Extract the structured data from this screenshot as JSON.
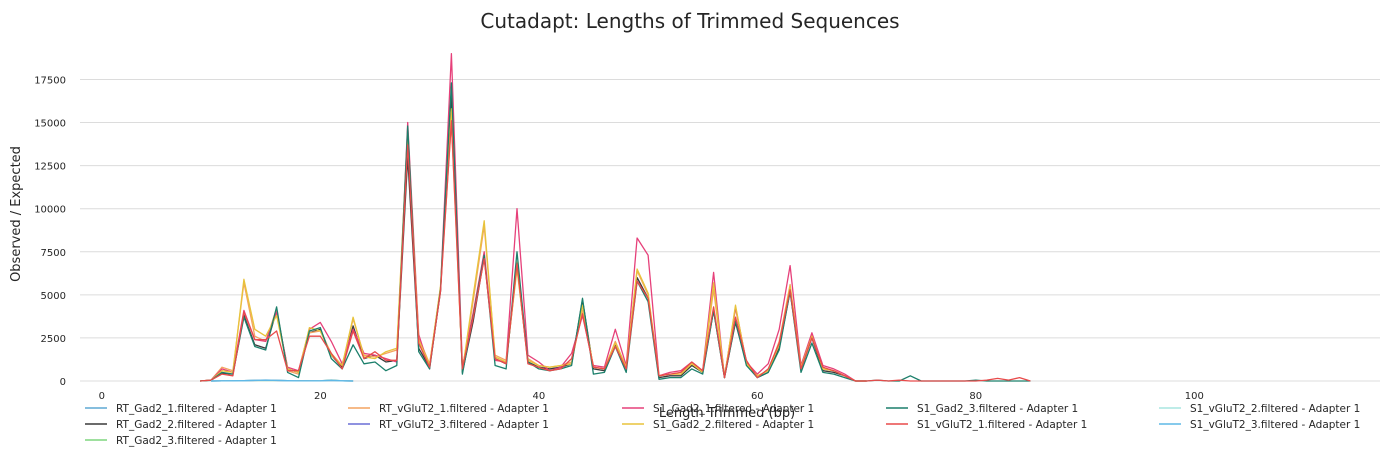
{
  "chart_data": {
    "type": "line",
    "title": "Cutadapt: Lengths of Trimmed Sequences",
    "xlabel": "Length Trimmed (bp)",
    "ylabel": "Observed / Expected",
    "xlim": [
      -2,
      117
    ],
    "ylim": [
      0,
      19500
    ],
    "xticks": [
      0,
      20,
      40,
      60,
      80,
      100
    ],
    "yticks": [
      0,
      2500,
      5000,
      7500,
      10000,
      12500,
      15000,
      17500
    ],
    "grid": "horizontal",
    "legend_position": "bottom",
    "series": [
      {
        "name": "RT_Gad2_1.filtered - Adapter 1",
        "color": "#5fa8d3",
        "x": [
          10,
          11,
          12,
          13,
          14,
          15,
          16,
          17,
          18,
          19,
          20,
          21,
          22,
          23
        ],
        "y": [
          0,
          5,
          10,
          20,
          40,
          60,
          40,
          20,
          10,
          5,
          10,
          60,
          10,
          0
        ]
      },
      {
        "name": "RT_Gad2_2.filtered - Adapter 1",
        "color": "#3a3a3a",
        "x": [
          9,
          10,
          11,
          12,
          13,
          14,
          15,
          16,
          17,
          18,
          19,
          20,
          21,
          22,
          23,
          24,
          25,
          26,
          27,
          28,
          29,
          30,
          31,
          32,
          33,
          34,
          35,
          36,
          37,
          38,
          39,
          40,
          41,
          42,
          43,
          44,
          45,
          46,
          47,
          48,
          49,
          50,
          51,
          52,
          53,
          54,
          55,
          56,
          57,
          58,
          59,
          60,
          61,
          62,
          63,
          64,
          65,
          66,
          67,
          68,
          69,
          70
        ],
        "y": [
          0,
          50,
          450,
          400,
          3800,
          2100,
          1900,
          4100,
          700,
          500,
          2800,
          3000,
          1500,
          800,
          3200,
          1300,
          1500,
          1100,
          1200,
          13000,
          1900,
          800,
          5200,
          16500,
          500,
          3500,
          7200,
          1300,
          1000,
          6700,
          1100,
          800,
          700,
          800,
          1000,
          4700,
          700,
          600,
          2100,
          700,
          6000,
          4800,
          200,
          300,
          300,
          900,
          500,
          4100,
          200,
          3400,
          1000,
          200,
          500,
          1900,
          5200,
          700,
          2500,
          600,
          500,
          300,
          0,
          0
        ]
      },
      {
        "name": "RT_Gad2_3.filtered - Adapter 1",
        "color": "#7fd67f",
        "x": [
          10,
          11,
          12,
          13,
          14,
          15,
          16,
          17,
          18,
          19,
          20,
          21,
          22,
          23
        ],
        "y": [
          0,
          5,
          10,
          20,
          30,
          40,
          30,
          20,
          10,
          5,
          10,
          40,
          10,
          0
        ]
      },
      {
        "name": "RT_vGluT2_1.filtered - Adapter 1",
        "color": "#f4a460",
        "x": [
          9,
          10,
          11,
          12,
          13,
          14,
          15,
          16,
          17,
          18,
          19,
          20,
          21,
          22,
          23,
          24,
          25,
          26,
          27,
          28,
          29,
          30,
          31,
          32,
          33,
          34,
          35,
          36,
          37,
          38,
          39,
          40,
          41,
          42,
          43,
          44,
          45,
          46,
          47,
          48,
          49,
          50,
          51,
          52,
          53,
          54,
          55,
          56,
          57,
          58,
          59,
          60,
          61,
          62,
          63,
          64,
          65,
          66,
          67,
          68,
          69,
          70
        ],
        "y": [
          0,
          50,
          800,
          600,
          5700,
          2600,
          2300,
          4200,
          600,
          400,
          2800,
          2900,
          1600,
          900,
          3600,
          1500,
          1400,
          1600,
          1800,
          14000,
          2500,
          1000,
          5400,
          15000,
          600,
          4700,
          9000,
          1500,
          1200,
          6900,
          1300,
          900,
          800,
          900,
          1100,
          4100,
          800,
          700,
          2300,
          800,
          6400,
          5000,
          300,
          400,
          400,
          1000,
          600,
          5300,
          300,
          4200,
          1100,
          300,
          600,
          2300,
          5600,
          800,
          2700,
          700,
          600,
          300,
          0,
          0
        ]
      },
      {
        "name": "RT_vGluT2_3.filtered - Adapter 1",
        "color": "#6a6fd6",
        "x": [
          10,
          11,
          12,
          13,
          14,
          15,
          16,
          17,
          18,
          19,
          20,
          21,
          22,
          23
        ],
        "y": [
          0,
          5,
          10,
          15,
          30,
          50,
          30,
          15,
          5,
          5,
          10,
          30,
          10,
          0
        ]
      },
      {
        "name": "S1_Gad2_1.filtered - Adapter 1",
        "color": "#e6407a",
        "x": [
          9,
          10,
          11,
          12,
          13,
          14,
          15,
          16,
          17,
          18,
          19,
          20,
          21,
          22,
          23,
          24,
          25,
          26,
          27,
          28,
          29,
          30,
          31,
          32,
          33,
          34,
          35,
          36,
          37,
          38,
          39,
          40,
          41,
          42,
          43,
          44,
          45,
          46,
          47,
          48,
          49,
          50,
          51,
          52,
          53,
          54,
          55,
          56,
          57,
          58,
          59,
          60,
          61,
          62,
          63,
          64,
          65,
          66,
          67,
          68,
          69,
          70
        ],
        "y": [
          0,
          60,
          700,
          500,
          4100,
          2400,
          2300,
          4000,
          800,
          600,
          3000,
          3400,
          2300,
          1000,
          3000,
          1600,
          1500,
          1300,
          1100,
          15000,
          2700,
          700,
          5300,
          19000,
          800,
          4000,
          7500,
          1200,
          1100,
          10000,
          1500,
          1100,
          600,
          800,
          1600,
          3800,
          900,
          800,
          3000,
          900,
          8300,
          7300,
          300,
          500,
          600,
          1100,
          600,
          6300,
          200,
          4300,
          1100,
          400,
          1000,
          3000,
          6700,
          900,
          2800,
          900,
          700,
          400,
          0,
          0
        ]
      },
      {
        "name": "S1_Gad2_2.filtered - Adapter 1",
        "color": "#e8c33b",
        "x": [
          9,
          10,
          11,
          12,
          13,
          14,
          15,
          16,
          17,
          18,
          19,
          20,
          21,
          22,
          23,
          24,
          25,
          26,
          27,
          28,
          29,
          30,
          31,
          32,
          33,
          34,
          35,
          36,
          37,
          38,
          39,
          40,
          41,
          42,
          43,
          44,
          45,
          46,
          47,
          48,
          49,
          50,
          51,
          52,
          53,
          54,
          55,
          56,
          57,
          58,
          59,
          60,
          61,
          62,
          63,
          64,
          65,
          66,
          67,
          68,
          69,
          70
        ],
        "y": [
          0,
          50,
          600,
          500,
          5900,
          3000,
          2600,
          3800,
          700,
          500,
          3100,
          2900,
          1500,
          900,
          3700,
          1400,
          1300,
          1700,
          1900,
          14500,
          2400,
          900,
          5500,
          15800,
          600,
          5000,
          9300,
          1400,
          1100,
          6500,
          1200,
          900,
          800,
          900,
          1000,
          4400,
          800,
          700,
          2200,
          800,
          6500,
          5100,
          300,
          400,
          400,
          1000,
          500,
          5700,
          200,
          4400,
          1000,
          300,
          600,
          2100,
          5500,
          800,
          2600,
          700,
          600,
          300,
          0,
          0
        ]
      },
      {
        "name": "S1_Gad2_3.filtered - Adapter 1",
        "color": "#1b7f6b",
        "x": [
          9,
          10,
          11,
          12,
          13,
          14,
          15,
          16,
          17,
          18,
          19,
          20,
          21,
          22,
          23,
          24,
          25,
          26,
          27,
          28,
          29,
          30,
          31,
          32,
          33,
          34,
          35,
          36,
          37,
          38,
          39,
          40,
          41,
          42,
          43,
          44,
          45,
          46,
          47,
          48,
          49,
          50,
          51,
          52,
          53,
          54,
          55,
          56,
          57,
          58,
          59,
          60,
          61,
          62,
          63,
          64,
          65,
          66,
          67,
          68,
          69,
          70,
          71,
          72,
          73,
          74,
          75,
          76,
          77,
          78,
          79,
          80,
          81,
          82,
          83,
          84,
          85
        ],
        "y": [
          0,
          40,
          500,
          400,
          3700,
          2000,
          1800,
          4300,
          500,
          200,
          2900,
          3100,
          1300,
          700,
          2100,
          1000,
          1100,
          600,
          900,
          14800,
          1700,
          700,
          5300,
          17300,
          400,
          3800,
          7300,
          900,
          700,
          7500,
          1100,
          700,
          600,
          700,
          900,
          4800,
          400,
          500,
          2000,
          500,
          5800,
          4600,
          100,
          200,
          200,
          700,
          400,
          4100,
          200,
          3500,
          900,
          200,
          500,
          1800,
          5200,
          500,
          2200,
          500,
          400,
          200,
          0,
          0,
          50,
          0,
          0,
          300,
          0,
          0,
          0,
          0,
          0,
          50,
          0,
          0,
          0,
          0,
          0
        ]
      },
      {
        "name": "S1_vGluT2_1.filtered - Adapter 1",
        "color": "#e84a4a",
        "x": [
          9,
          10,
          11,
          12,
          13,
          14,
          15,
          16,
          17,
          18,
          19,
          20,
          21,
          22,
          23,
          24,
          25,
          26,
          27,
          28,
          29,
          30,
          31,
          32,
          33,
          34,
          35,
          36,
          37,
          38,
          39,
          40,
          41,
          42,
          43,
          44,
          45,
          46,
          47,
          48,
          49,
          50,
          51,
          52,
          53,
          54,
          55,
          56,
          57,
          58,
          59,
          60,
          61,
          62,
          63,
          64,
          65,
          66,
          67,
          68,
          69,
          70,
          71,
          72,
          73,
          74,
          75,
          76,
          77,
          78,
          79,
          80,
          81,
          82,
          83,
          84,
          85
        ],
        "y": [
          0,
          50,
          400,
          300,
          4000,
          2400,
          2400,
          2900,
          600,
          600,
          2600,
          2600,
          1600,
          700,
          2900,
          1300,
          1700,
          1200,
          1200,
          13700,
          2200,
          800,
          5200,
          15100,
          700,
          3700,
          7100,
          1300,
          1000,
          6800,
          1000,
          800,
          600,
          700,
          1300,
          3900,
          800,
          700,
          2000,
          700,
          5800,
          4800,
          300,
          400,
          500,
          1100,
          600,
          4300,
          200,
          3700,
          1200,
          200,
          700,
          2200,
          5300,
          700,
          2500,
          800,
          600,
          300,
          0,
          0,
          50,
          0,
          50,
          0,
          0,
          0,
          0,
          0,
          0,
          0,
          50,
          150,
          50,
          200,
          0
        ]
      },
      {
        "name": "S1_vGluT2_2.filtered - Adapter 1",
        "color": "#a8e6e0",
        "x": [
          10,
          11,
          12,
          13,
          14,
          15,
          16,
          17,
          18,
          19,
          20,
          21,
          22,
          23
        ],
        "y": [
          0,
          5,
          10,
          20,
          30,
          40,
          30,
          15,
          5,
          5,
          10,
          30,
          10,
          0
        ]
      },
      {
        "name": "S1_vGluT2_3.filtered - Adapter 1",
        "color": "#5fb8e6",
        "x": [
          10,
          11,
          12,
          13,
          14,
          15,
          16,
          17,
          18,
          19,
          20,
          21,
          22,
          23
        ],
        "y": [
          0,
          5,
          10,
          20,
          35,
          45,
          35,
          15,
          5,
          5,
          10,
          35,
          10,
          0
        ]
      }
    ]
  }
}
